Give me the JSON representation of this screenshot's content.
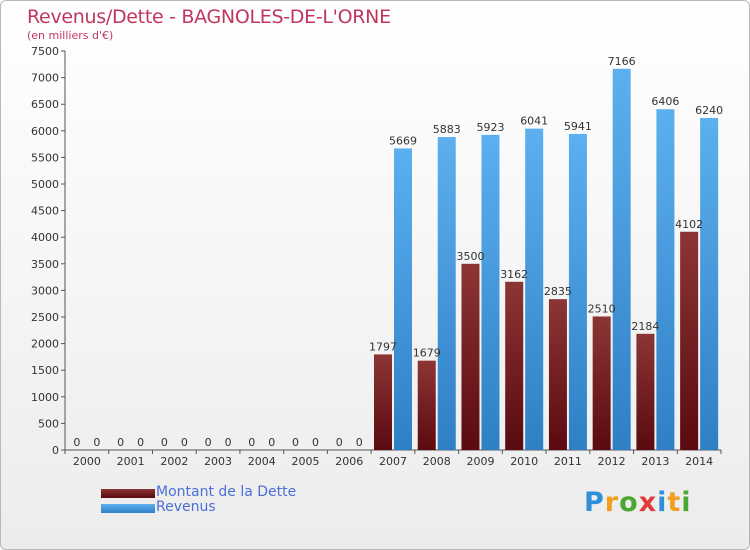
{
  "chart_data": {
    "type": "bar",
    "title": "Revenus/Dette - BAGNOLES-DE-L'ORNE",
    "subtitle": "(en milliers d'€)",
    "xlabel": "",
    "ylabel": "",
    "ylim": [
      0,
      7500
    ],
    "yticks": [
      0,
      500,
      1000,
      1500,
      2000,
      2500,
      3000,
      3500,
      4000,
      4500,
      5000,
      5500,
      6000,
      6500,
      7000,
      7500
    ],
    "categories": [
      "2000",
      "2001",
      "2002",
      "2003",
      "2004",
      "2005",
      "2006",
      "2007",
      "2008",
      "2009",
      "2010",
      "2011",
      "2012",
      "2013",
      "2014"
    ],
    "series": [
      {
        "name": "Montant de la Dette",
        "color": "#7a1f22",
        "values": [
          0,
          0,
          0,
          0,
          0,
          0,
          0,
          1797,
          1679,
          3500,
          3162,
          2835,
          2510,
          2184,
          4102
        ],
        "labels": [
          "0",
          "0",
          "0",
          "0",
          "0",
          "0",
          "0",
          "1797",
          "1679",
          "3500",
          "3162",
          "2835",
          "2510",
          "2184",
          "4102"
        ]
      },
      {
        "name": "Revenus",
        "color": "#4da3e6",
        "values": [
          0,
          0,
          0,
          0,
          0,
          0,
          0,
          5669,
          5883,
          5923,
          6041,
          5941,
          7166,
          6406,
          6240
        ],
        "labels": [
          "0",
          "0",
          "0",
          "0",
          "0",
          "0",
          "0",
          "5669",
          "5883",
          "5923",
          "6041",
          "5941",
          "7166",
          "6406",
          "6240"
        ]
      }
    ],
    "grid": false,
    "legend_position": "bottom-left"
  },
  "brand": {
    "letters": [
      "P",
      "r",
      "o",
      "x",
      "i",
      "t",
      "i"
    ],
    "colors": [
      "#2e8fd8",
      "#f0a020",
      "#4aa832",
      "#e23b3b",
      "#2e8fd8",
      "#f0a020",
      "#4aa832"
    ]
  }
}
